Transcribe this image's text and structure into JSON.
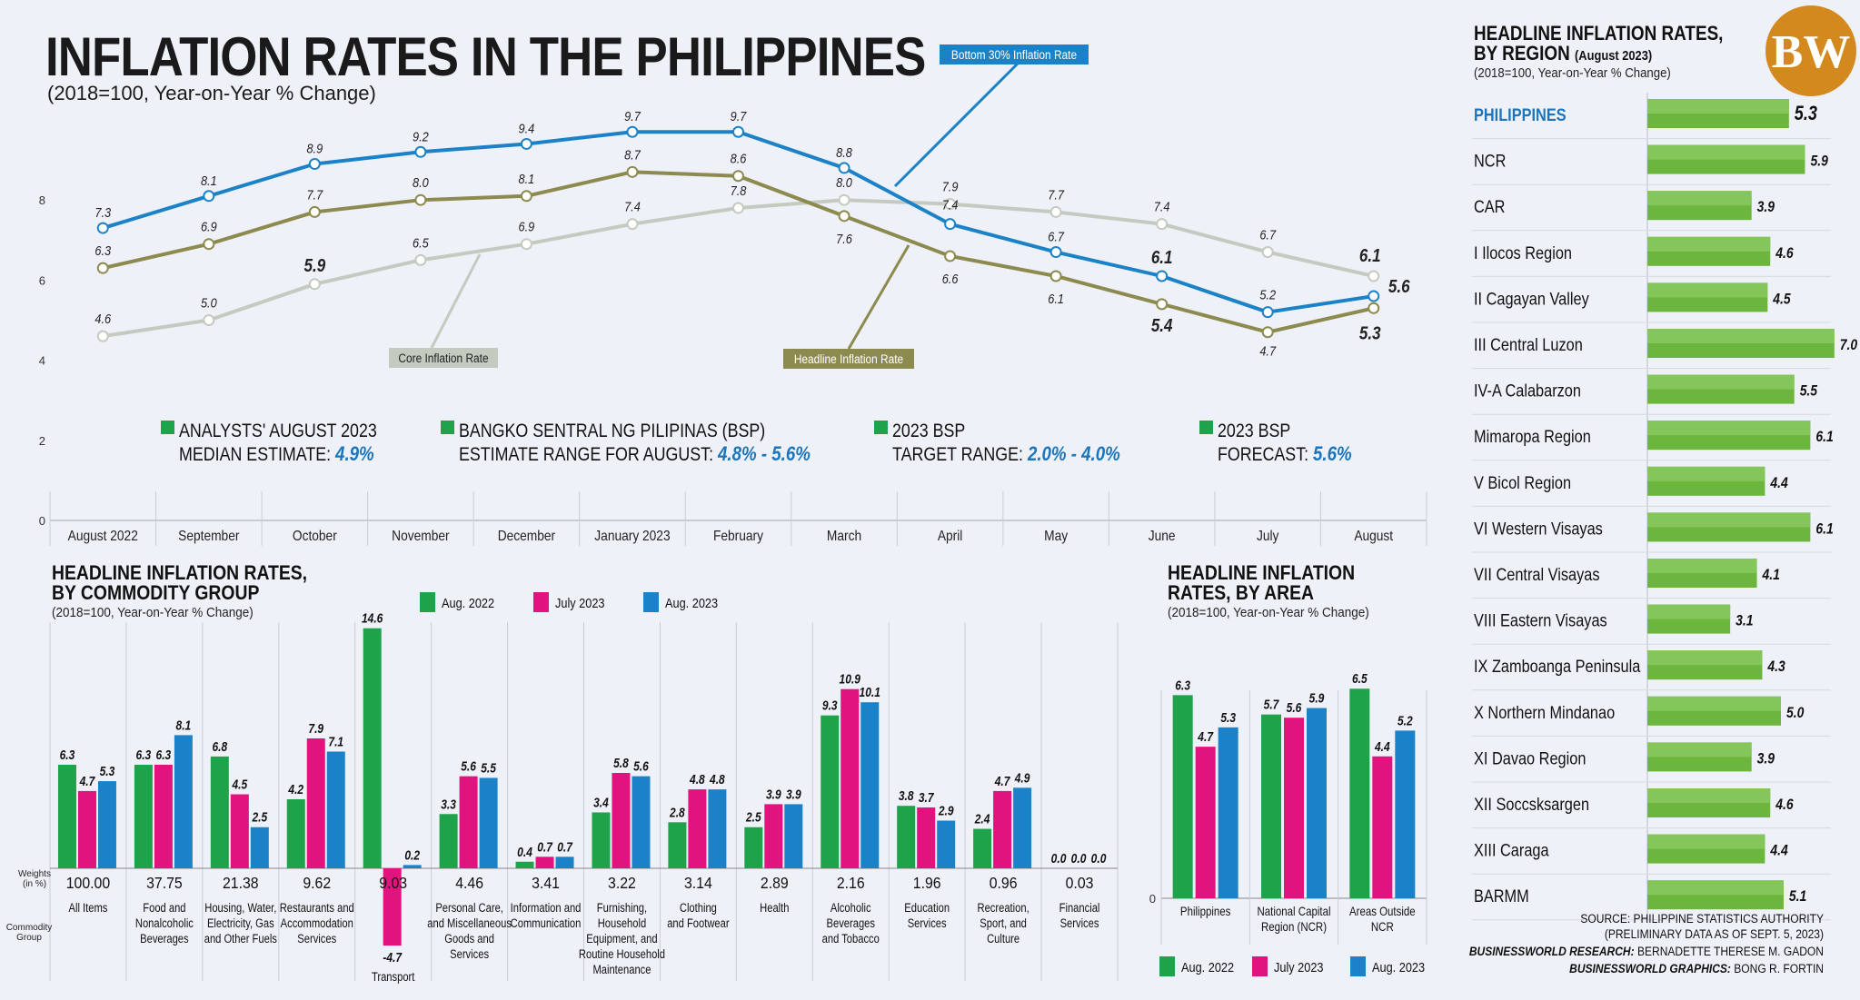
{
  "header": {
    "title": "INFLATION RATES IN THE PHILIPPINES",
    "subtitle": "(2018=100, Year-on-Year % Change)",
    "logo_text": "BW"
  },
  "colors": {
    "bottom30": "#1b82c8",
    "headline": "#8c8a4e",
    "core": "#c3cbc0",
    "green": "#1fa34a",
    "magenta": "#e0137f",
    "blue": "#1b82c8",
    "region_bar": "#6db63e",
    "highlight": "#1b75bc"
  },
  "estimates": [
    {
      "line1": "ANALYSTS' AUGUST 2023",
      "line2": "MEDIAN ESTIMATE: ",
      "value": "4.9%"
    },
    {
      "line1": "BANGKO SENTRAL NG PILIPINAS (BSP)",
      "line2": "ESTIMATE RANGE FOR AUGUST: ",
      "value": "4.8% - 5.6%"
    },
    {
      "line1": "2023 BSP",
      "line2": "TARGET RANGE: ",
      "value": "2.0% - 4.0%"
    },
    {
      "line1": "2023 BSP",
      "line2": "FORECAST: ",
      "value": "5.6%"
    }
  ],
  "chart_data": [
    {
      "type": "line",
      "x": [
        "August 2022",
        "September",
        "October",
        "November",
        "December",
        "January 2023",
        "February",
        "March",
        "April",
        "May",
        "June",
        "July",
        "August"
      ],
      "ylim": [
        0,
        10
      ],
      "y_ticks": [
        "0",
        "2",
        "4",
        "6",
        "8"
      ],
      "series": [
        {
          "name": "Bottom 30% Inflation Rate",
          "values": [
            7.3,
            8.1,
            8.9,
            9.2,
            9.4,
            9.7,
            9.7,
            8.8,
            7.4,
            6.7,
            6.1,
            5.2,
            5.6
          ],
          "labels": [
            "7.3",
            "8.1",
            "8.9",
            "9.2",
            "9.4",
            "9.7",
            "9.7",
            "8.8",
            "7.4",
            "6.7",
            "6.1",
            "5.2",
            "5.6"
          ]
        },
        {
          "name": "Headline Inflation Rate",
          "values": [
            6.3,
            6.9,
            7.7,
            8.0,
            8.1,
            8.7,
            8.6,
            7.6,
            6.6,
            6.1,
            5.4,
            4.7,
            5.3
          ],
          "labels": [
            "6.3",
            "6.9",
            "7.7",
            "8.0",
            "8.1",
            "8.7",
            "8.6",
            "7.6",
            "6.6",
            "6.1",
            "5.4",
            "4.7",
            "5.3"
          ]
        },
        {
          "name": "Core Inflation Rate",
          "values": [
            4.6,
            5.0,
            5.9,
            6.5,
            6.9,
            7.4,
            7.8,
            8.0,
            7.9,
            7.7,
            7.4,
            6.7,
            6.1
          ],
          "labels": [
            "4.6",
            "5.0",
            "5.9",
            "6.5",
            "6.9",
            "7.4",
            "7.8",
            "8.0",
            "7.9",
            "7.7",
            "7.4",
            "6.7",
            "6.1"
          ]
        }
      ]
    },
    {
      "type": "bar",
      "title": "HEADLINE INFLATION RATES, BY COMMODITY GROUP",
      "subtitle": "(2018=100, Year-on-Year % Change)",
      "legend": [
        "Aug. 2022",
        "July 2023",
        "Aug. 2023"
      ],
      "weights_label": "Weights (in %)",
      "group_label": "Commodity Group",
      "categories": [
        "All Items",
        "Food and Nonalcoholic Beverages",
        "Housing, Water, Electricity, Gas and Other Fuels",
        "Restaurants and Accommodation Services",
        "Transport",
        "Personal Care, and Miscellaneous Goods and Services",
        "Information and Communication",
        "Furnishing, Household Equipment, and Routine Household Maintenance",
        "Clothing and Footwear",
        "Health",
        "Alcoholic Beverages and Tobacco",
        "Education Services",
        "Recreation, Sport, and Culture",
        "Financial Services"
      ],
      "category_lines": [
        [
          "All Items"
        ],
        [
          "Food and",
          "Nonalcoholic",
          "Beverages"
        ],
        [
          "Housing, Water,",
          "Electricity, Gas",
          "and Other Fuels"
        ],
        [
          "Restaurants and",
          "Accommodation",
          "Services"
        ],
        [
          "Transport"
        ],
        [
          "Personal Care,",
          "and Miscellaneous",
          "Goods and",
          "Services"
        ],
        [
          "Information and",
          "Communication"
        ],
        [
          "Furnishing,",
          "Household",
          "Equipment, and",
          "Routine Household",
          "Maintenance"
        ],
        [
          "Clothing",
          "and Footwear"
        ],
        [
          "Health"
        ],
        [
          "Alcoholic",
          "Beverages",
          "and Tobacco"
        ],
        [
          "Education",
          "Services"
        ],
        [
          "Recreation,",
          "Sport, and",
          "Culture"
        ],
        [
          "Financial",
          "Services"
        ]
      ],
      "weights": [
        "100.00",
        "37.75",
        "21.38",
        "9.62",
        "9.03",
        "4.46",
        "3.41",
        "3.22",
        "3.14",
        "2.89",
        "2.16",
        "1.96",
        "0.96",
        "0.03"
      ],
      "series": [
        {
          "name": "Aug. 2022",
          "values": [
            6.3,
            6.3,
            6.8,
            4.2,
            14.6,
            3.3,
            0.4,
            3.4,
            2.8,
            2.5,
            9.3,
            3.8,
            2.4,
            0.0
          ],
          "labels": [
            "6.3",
            "6.3",
            "6.8",
            "4.2",
            "14.6",
            "3.3",
            "0.4",
            "3.4",
            "2.8",
            "2.5",
            "9.3",
            "3.8",
            "2.4",
            "0.0"
          ]
        },
        {
          "name": "July 2023",
          "values": [
            4.7,
            6.3,
            4.5,
            7.9,
            -4.7,
            5.6,
            0.7,
            5.8,
            4.8,
            3.9,
            10.9,
            3.7,
            4.7,
            0.0
          ],
          "labels": [
            "4.7",
            "6.3",
            "4.5",
            "7.9",
            "-4.7",
            "5.6",
            "0.7",
            "5.8",
            "4.8",
            "3.9",
            "10.9",
            "3.7",
            "4.7",
            "0.0"
          ]
        },
        {
          "name": "Aug. 2023",
          "values": [
            5.3,
            8.1,
            2.5,
            7.1,
            0.2,
            5.5,
            0.7,
            5.6,
            4.8,
            3.9,
            10.1,
            2.9,
            4.9,
            0.0
          ],
          "labels": [
            "5.3",
            "8.1",
            "2.5",
            "7.1",
            "0.2",
            "5.5",
            "0.7",
            "5.6",
            "4.8",
            "3.9",
            "10.1",
            "2.9",
            "4.9",
            "0.0"
          ]
        }
      ]
    },
    {
      "type": "bar",
      "title": "HEADLINE INFLATION RATES, BY AREA",
      "subtitle": "(2018=100, Year-on-Year % Change)",
      "y_ticks": [
        "0"
      ],
      "legend": [
        "Aug. 2022",
        "July 2023",
        "Aug. 2023"
      ],
      "categories": [
        "Philippines",
        "National Capital Region (NCR)",
        "Areas Outside NCR"
      ],
      "category_lines": [
        [
          "Philippines"
        ],
        [
          "National Capital",
          "Region (NCR)"
        ],
        [
          "Areas Outside",
          "NCR"
        ]
      ],
      "series": [
        {
          "name": "Aug. 2022",
          "values": [
            6.3,
            5.7,
            6.5
          ],
          "labels": [
            "6.3",
            "5.7",
            "6.5"
          ]
        },
        {
          "name": "July 2023",
          "values": [
            4.7,
            5.6,
            4.4
          ],
          "labels": [
            "4.7",
            "5.6",
            "4.4"
          ]
        },
        {
          "name": "Aug. 2023",
          "values": [
            5.3,
            5.9,
            5.2
          ],
          "labels": [
            "5.3",
            "5.9",
            "5.2"
          ]
        }
      ]
    },
    {
      "type": "bar",
      "title": "HEADLINE INFLATION RATES, BY REGION",
      "title_suffix": "(August 2023)",
      "subtitle": "(2018=100, Year-on-Year % Change)",
      "categories": [
        "PHILIPPINES",
        "NCR",
        "CAR",
        "I Ilocos Region",
        "II Cagayan Valley",
        "III Central Luzon",
        "IV-A Calabarzon",
        "Mimaropa Region",
        "V Bicol Region",
        "VI Western Visayas",
        "VII Central Visayas",
        "VIII Eastern Visayas",
        "IX Zamboanga Peninsula",
        "X Northern Mindanao",
        "XI Davao Region",
        "XII Soccsksargen",
        "XIII Caraga",
        "BARMM"
      ],
      "values": [
        5.3,
        5.9,
        3.9,
        4.6,
        4.5,
        7.0,
        5.5,
        6.1,
        4.4,
        6.1,
        4.1,
        3.1,
        4.3,
        5.0,
        3.9,
        4.6,
        4.4,
        5.1
      ],
      "labels": [
        "5.3",
        "5.9",
        "3.9",
        "4.6",
        "4.5",
        "7.0",
        "5.5",
        "6.1",
        "4.4",
        "6.1",
        "4.1",
        "3.1",
        "4.3",
        "5.0",
        "3.9",
        "4.6",
        "4.4",
        "5.1"
      ]
    }
  ],
  "credits": {
    "source": "SOURCE: PHILIPPINE STATISTICS AUTHORITY",
    "preliminary": "(PRELIMINARY DATA AS OF SEPT. 5, 2023)",
    "research_label": "BUSINESSWORLD RESEARCH:",
    "research_name": " BERNADETTE THERESE M. GADON",
    "graphics_label": "BUSINESSWORLD GRAPHICS:",
    "graphics_name": " BONG R. FORTIN"
  }
}
